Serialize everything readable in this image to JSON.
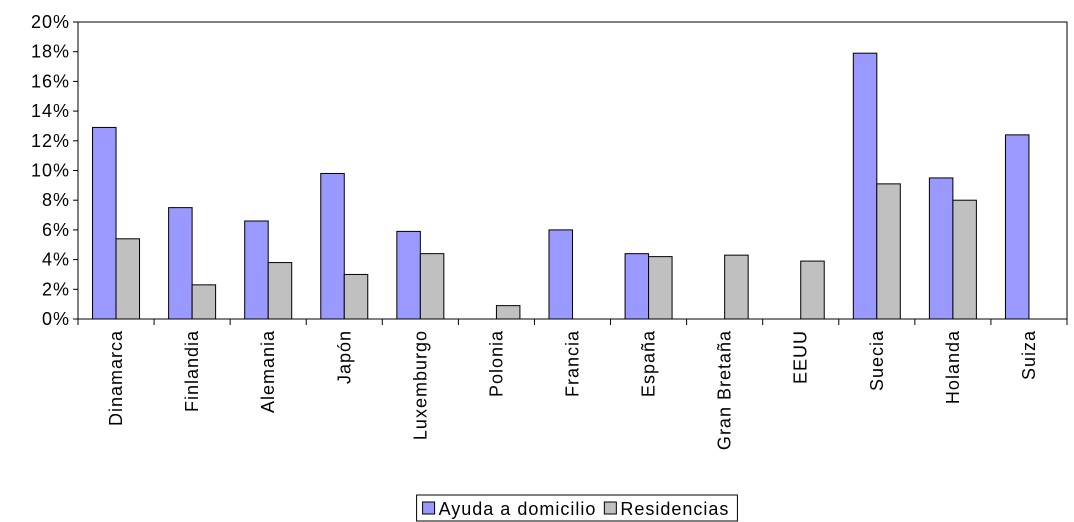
{
  "chart_data": {
    "type": "bar",
    "categories": [
      "Dinamarca",
      "Finlandia",
      "Alemania",
      "Japón",
      "Luxemburgo",
      "Polonia",
      "Francia",
      "España",
      "Gran Bretaña",
      "EEUU",
      "Suecia",
      "Holanda",
      "Suiza"
    ],
    "series": [
      {
        "name": "Ayuda a domicilio",
        "color": "#9999ff",
        "values": [
          12.9,
          7.5,
          6.6,
          9.8,
          5.9,
          null,
          6.0,
          4.4,
          null,
          null,
          17.9,
          9.5,
          12.4
        ]
      },
      {
        "name": "Residencias",
        "color": "#c0c0c0",
        "values": [
          5.4,
          2.3,
          3.8,
          3.0,
          4.4,
          0.9,
          null,
          4.2,
          4.3,
          3.9,
          9.1,
          8.0,
          null
        ]
      }
    ],
    "ylim": [
      0,
      20
    ],
    "yticks": [
      {
        "value": 0,
        "label": "0%"
      },
      {
        "value": 2,
        "label": "2%"
      },
      {
        "value": 4,
        "label": "4%"
      },
      {
        "value": 6,
        "label": "6%"
      },
      {
        "value": 8,
        "label": "8%"
      },
      {
        "value": 10,
        "label": "10%"
      },
      {
        "value": 12,
        "label": "12%"
      },
      {
        "value": 14,
        "label": "14%"
      },
      {
        "value": 16,
        "label": "16%"
      },
      {
        "value": 18,
        "label": "18%"
      },
      {
        "value": 20,
        "label": "20%"
      }
    ],
    "legend": "bottom"
  }
}
